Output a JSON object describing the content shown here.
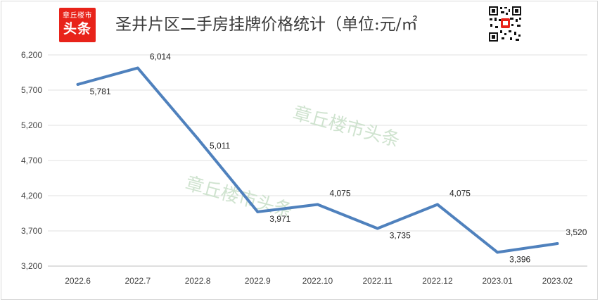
{
  "header": {
    "logo_line1": "章丘楼市",
    "logo_line2": "头条",
    "title": "圣井片区二手房挂牌价格统计（单位:元/㎡"
  },
  "watermark": "章丘楼市头条",
  "chart_data": {
    "type": "line",
    "title": "圣井片区二手房挂牌价格统计（单位:元/㎡",
    "categories": [
      "2022.6",
      "2022.7",
      "2022.8",
      "2022.9",
      "2022.10",
      "2022.11",
      "2022.12",
      "2023.01",
      "2023.02"
    ],
    "values": [
      5781,
      6014,
      5011,
      3971,
      4075,
      3735,
      4075,
      3396,
      3520
    ],
    "value_labels": [
      "5,781",
      "6,014",
      "5,011",
      "3,971",
      "4,075",
      "3,735",
      "4,075",
      "3,396",
      "3,520"
    ],
    "yticks": [
      "3,200",
      "3,700",
      "4,200",
      "4,700",
      "5,200",
      "5,700",
      "6,200"
    ],
    "ylim": [
      3200,
      6200
    ],
    "grid": true,
    "legend": "none",
    "line_color": "#4f81bd"
  }
}
